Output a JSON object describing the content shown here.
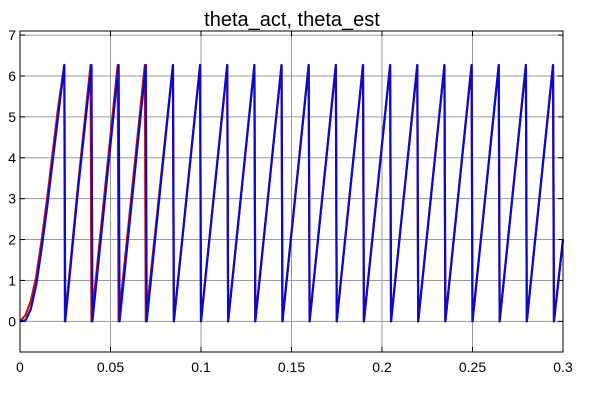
{
  "chart_data": {
    "type": "line",
    "title": "theta_act, theta_est",
    "xlabel": "",
    "ylabel": "",
    "xlim": [
      0,
      0.3
    ],
    "ylim": [
      -0.75,
      7.1
    ],
    "xticks": [
      0,
      0.05,
      0.1,
      0.15,
      0.2,
      0.25,
      0.3
    ],
    "xtick_labels": [
      "0",
      "0.05",
      "0.1",
      "0.15",
      "0.2",
      "0.25",
      "0.3"
    ],
    "yticks": [
      0,
      1,
      2,
      3,
      4,
      5,
      6,
      7
    ],
    "ytick_labels": [
      "0",
      "1",
      "2",
      "3",
      "4",
      "5",
      "6",
      "7"
    ],
    "grid": true,
    "legend": "none",
    "series": [
      {
        "color": "#cc1010",
        "x": [
          0,
          0.003,
          0.006,
          0.009,
          0.012,
          0.015,
          0.018,
          0.021,
          0.0245,
          0.0248,
          0.032,
          0.039,
          0.0395,
          0.054,
          0.0545,
          0.069,
          0.0695,
          0.0845,
          0.085,
          0.0995,
          0.1,
          0.1145,
          0.115,
          0.1295,
          0.13,
          0.1445,
          0.145,
          0.1595,
          0.16,
          0.1745,
          0.175,
          0.1895,
          0.19,
          0.2045,
          0.205,
          0.2195,
          0.22,
          0.2345,
          0.235,
          0.2495,
          0.25,
          0.2645,
          0.265,
          0.2795,
          0.28,
          0.2945,
          0.295,
          0.3
        ],
        "y": [
          0,
          0.15,
          0.5,
          1.1,
          2.0,
          3.0,
          4.1,
          5.2,
          6.27,
          0,
          3.3,
          6.27,
          0,
          6.27,
          0,
          6.27,
          0,
          6.27,
          0,
          6.27,
          0,
          6.27,
          0,
          6.27,
          0,
          6.27,
          0,
          6.27,
          0,
          6.27,
          0,
          6.27,
          0,
          6.27,
          0,
          6.27,
          0,
          6.27,
          0,
          6.27,
          0,
          6.27,
          0,
          6.27,
          0,
          6.27,
          0,
          2.0
        ]
      },
      {
        "color": "#0a0acc",
        "x": [
          0,
          0.003,
          0.006,
          0.009,
          0.012,
          0.015,
          0.018,
          0.021,
          0.0245,
          0.025,
          0.032,
          0.0395,
          0.04,
          0.0545,
          0.055,
          0.0695,
          0.07,
          0.0845,
          0.085,
          0.0995,
          0.1,
          0.1145,
          0.115,
          0.1295,
          0.13,
          0.1445,
          0.145,
          0.1595,
          0.16,
          0.1745,
          0.175,
          0.1895,
          0.19,
          0.2045,
          0.205,
          0.2195,
          0.22,
          0.2345,
          0.235,
          0.2495,
          0.25,
          0.2645,
          0.265,
          0.2795,
          0.28,
          0.2945,
          0.295,
          0.3
        ],
        "y": [
          0,
          0.02,
          0.3,
          0.9,
          1.8,
          2.8,
          3.9,
          5.0,
          6.27,
          0,
          3.2,
          6.27,
          0,
          6.27,
          0,
          6.27,
          0,
          6.27,
          0,
          6.27,
          0,
          6.27,
          0,
          6.27,
          0,
          6.27,
          0,
          6.27,
          0,
          6.27,
          0,
          6.27,
          0,
          6.27,
          0,
          6.27,
          0,
          6.27,
          0,
          6.27,
          0,
          6.27,
          0,
          6.27,
          0,
          6.27,
          0,
          2.0
        ]
      }
    ]
  }
}
